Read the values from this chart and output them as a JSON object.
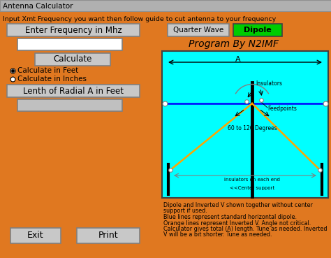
{
  "title": "Antenna Calculator",
  "bg_color": "#E07820",
  "header_text": "Input Xmt Frequency you want then follow guide to cut antenna to your frequency",
  "freq_label": "Enter Frequency in Mhz",
  "calc_btn": "Calculate",
  "radio1": "Calculate in Feet",
  "radio2": "Calculate in Inches",
  "length_label": "Lenth of Radial A in Feet",
  "exit_btn": "Exit",
  "print_btn": "Print",
  "qwave_btn": "Quarter Wave",
  "dipole_btn": "Dipole",
  "program_by": "Program By N2IMF",
  "diagram_bg": "#00FFFF",
  "desc_line1": "Dipole and Inverted V shown together without center",
  "desc_line2": "support if used.",
  "desc_line3": "Blue lines represent standard horizontal dipole.",
  "desc_line4": "Orange lines represent Inverted V. Angle not critical.",
  "desc_line5": "Calculator gives total (A) length. Tune as needed. Inverted",
  "desc_line6": "V will be a bit shorter. Tune as needed.",
  "title_bar_color": "#B0B0B0",
  "btn_color": "#C8C8C8",
  "input_color": "#FFFFFF",
  "input2_color": "#C0C0C0",
  "green_btn": "#00CC00"
}
